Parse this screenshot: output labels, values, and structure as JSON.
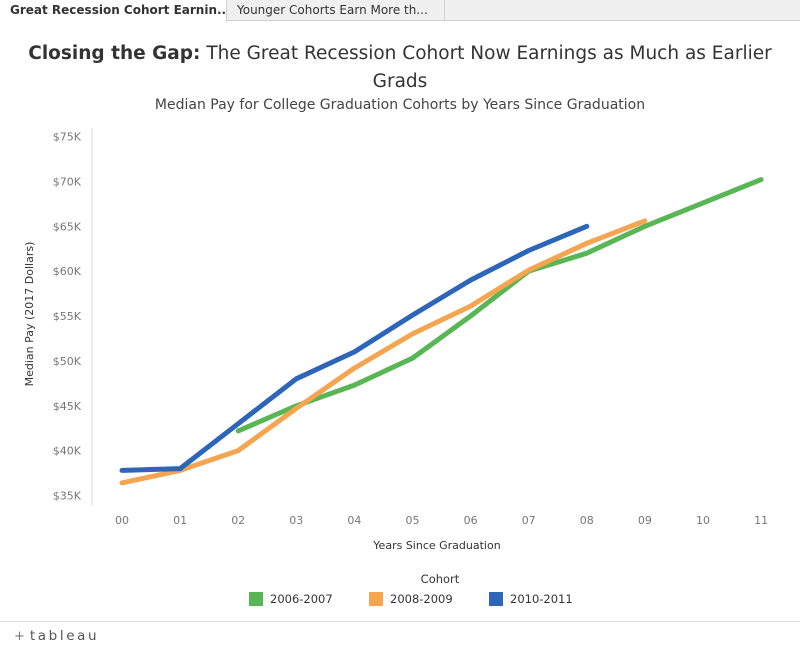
{
  "tabs": [
    {
      "label": "Great Recession Cohort Earnin..."
    },
    {
      "label": "Younger Cohorts Earn More th..."
    }
  ],
  "title": {
    "bold": "Closing the Gap:",
    "line1_rest": "The Great Recession Cohort Now Earnings as Much as Earlier",
    "line2": "Grads"
  },
  "subtitle": "Median Pay for College Graduation Cohorts by Years Since Graduation",
  "legend": {
    "title": "Cohort",
    "items": [
      {
        "label": "2006-2007",
        "color": "#59b655"
      },
      {
        "label": "2008-2009",
        "color": "#f5a44f"
      },
      {
        "label": "2010-2011",
        "color": "#2d65b9"
      }
    ]
  },
  "footer": {
    "logo_text": "tableau",
    "logo_glyph": "+"
  },
  "chart_data": {
    "type": "line",
    "xlabel": "Years Since Graduation",
    "ylabel": "Median Pay (2017 Dollars)",
    "categories": [
      "00",
      "01",
      "02",
      "03",
      "04",
      "05",
      "06",
      "07",
      "08",
      "09",
      "10",
      "11"
    ],
    "ylim": [
      35000,
      75000
    ],
    "yticks": [
      35000,
      40000,
      45000,
      50000,
      55000,
      60000,
      65000,
      70000,
      75000
    ],
    "ytick_labels": [
      "$35K",
      "$40K",
      "$45K",
      "$50K",
      "$55K",
      "$60K",
      "$65K",
      "$70K",
      "$75K"
    ],
    "grid": false,
    "legend_position": "bottom",
    "series": [
      {
        "name": "2006-2007",
        "color": "#59b655",
        "values": [
          null,
          null,
          42200,
          45000,
          47300,
          50300,
          55000,
          60000,
          62000,
          65000,
          67600,
          70200
        ]
      },
      {
        "name": "2008-2009",
        "color": "#f5a44f",
        "values": [
          36400,
          37800,
          40000,
          44700,
          49200,
          53000,
          56100,
          60100,
          63100,
          65600,
          null,
          null
        ]
      },
      {
        "name": "2010-2011",
        "color": "#2d65b9",
        "values": [
          37800,
          38000,
          43000,
          48000,
          51000,
          55100,
          59000,
          62300,
          65000,
          null,
          null,
          null
        ]
      }
    ]
  }
}
